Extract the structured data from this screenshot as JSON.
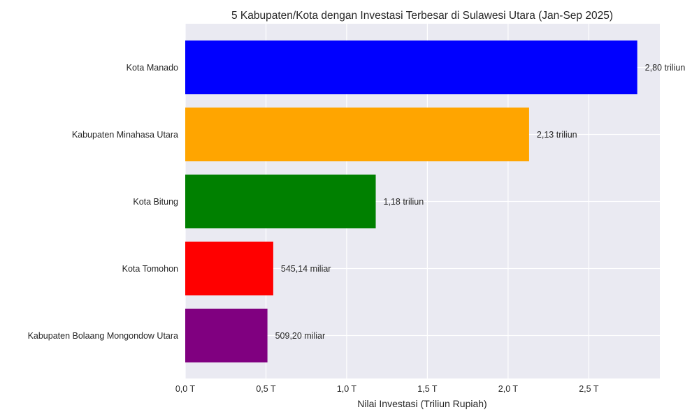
{
  "chart_data": {
    "type": "bar",
    "orientation": "horizontal",
    "title": "5 Kabupaten/Kota dengan Investasi Terbesar di Sulawesi Utara (Jan-Sep 2025)",
    "xlabel": "Nilai Investasi (Triliun Rupiah)",
    "ylabel": "",
    "categories": [
      "Kota Manado",
      "Kabupaten Minahasa Utara",
      "Kota Bitung",
      "Kota Tomohon",
      "Kabupaten Bolaang Mongondow Utara"
    ],
    "values": [
      2.8,
      2.13,
      1.18,
      0.54514,
      0.5092
    ],
    "data_labels": [
      "2,80 triliun",
      "2,13 triliun",
      "1,18 triliun",
      "545,14 miliar",
      "509,20 miliar"
    ],
    "colors": [
      "#0000ff",
      "#ffa500",
      "#008000",
      "#ff0000",
      "#800080"
    ],
    "xlim": [
      0,
      2.94
    ],
    "xticks": [
      0,
      0.5,
      1.0,
      1.5,
      2.0,
      2.5
    ],
    "xtick_labels": [
      "0,0 T",
      "0,5 T",
      "1,0 T",
      "1,5 T",
      "2,0 T",
      "2,5 T"
    ],
    "grid": true,
    "style": {
      "plot_background": "#eaeaf2",
      "grid_color": "#ffffff",
      "text_color": "#262626"
    }
  }
}
